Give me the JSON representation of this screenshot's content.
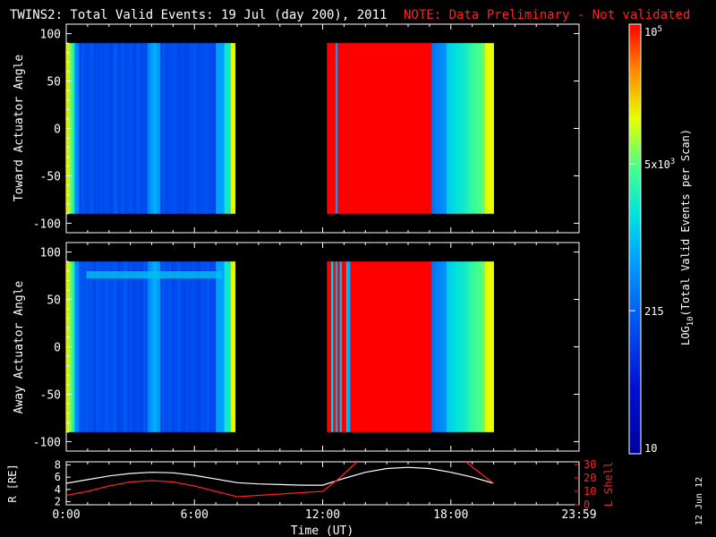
{
  "header": {
    "title": "TWINS2: Total Valid Events: 19 Jul (day 200), 2011",
    "note": "NOTE: Data Preliminary - Not validated",
    "note_color": "#ff2020",
    "date_stamp": "12 Jun 12"
  },
  "colorbar": {
    "label": "LOG10(Total Valid Events per Scan)",
    "label_prefix": "LOG",
    "label_sub": "10",
    "label_rest": "(Total Valid Events per Scan)",
    "ticks": [
      {
        "value": 10,
        "text": "10"
      },
      {
        "value": 215,
        "text": "215"
      },
      {
        "value": 5000,
        "text": "5x10^3"
      },
      {
        "value": 100000,
        "text": "10^5"
      }
    ],
    "range": [
      10,
      100000
    ],
    "scale": "log"
  },
  "chart_data": [
    {
      "type": "heatmap",
      "title": "",
      "ylabel": "Toward Actuator Angle",
      "xlabel": "",
      "ylim": [
        -110,
        110
      ],
      "xlim": [
        0,
        24
      ],
      "yticks": [
        100,
        50,
        0,
        -50,
        -100
      ],
      "data_x_ranges": [
        [
          0.0,
          7.9
        ],
        [
          12.2,
          20.0
        ]
      ],
      "data_y_range": [
        -90,
        90
      ]
    },
    {
      "type": "heatmap",
      "title": "",
      "ylabel": "Away Actuator Angle",
      "xlabel": "",
      "ylim": [
        -110,
        110
      ],
      "xlim": [
        0,
        24
      ],
      "yticks": [
        100,
        50,
        0,
        -50,
        -100
      ],
      "data_x_ranges": [
        [
          0.0,
          7.9
        ],
        [
          12.2,
          20.0
        ]
      ],
      "data_y_range": [
        -90,
        90
      ]
    },
    {
      "type": "line",
      "xlabel": "Time (UT)",
      "ylabel_left": "R [RE]",
      "ylabel_right": "L Shell",
      "ylim_left": [
        1.5,
        8.5
      ],
      "ylim_right": [
        0,
        32
      ],
      "yticks_left": [
        2,
        4,
        6,
        8
      ],
      "yticks_right": [
        0,
        10,
        20,
        30
      ],
      "xlim": [
        0,
        24
      ],
      "xticks": [
        {
          "value": 0,
          "text": "0:00"
        },
        {
          "value": 6,
          "text": "6:00"
        },
        {
          "value": 12,
          "text": "12:00"
        },
        {
          "value": 18,
          "text": "18:00"
        },
        {
          "value": 24,
          "text": "23:59"
        }
      ],
      "series": [
        {
          "name": "R",
          "color": "#ffffff",
          "axis": "left",
          "x": [
            0,
            1,
            2,
            3,
            4,
            5,
            6,
            7,
            8,
            9,
            10,
            11,
            12,
            13,
            14,
            15,
            16,
            17,
            18,
            19,
            20
          ],
          "y": [
            5.0,
            5.6,
            6.2,
            6.6,
            6.8,
            6.7,
            6.3,
            5.7,
            5.1,
            4.9,
            4.8,
            4.7,
            4.7,
            5.8,
            6.8,
            7.4,
            7.6,
            7.4,
            6.8,
            6.0,
            5.0
          ]
        },
        {
          "name": "L Shell",
          "color": "#ff2020",
          "axis": "right",
          "x": [
            0,
            1,
            2,
            3,
            4,
            5,
            6,
            7,
            8,
            9,
            10,
            11,
            12,
            12.8,
            13.6,
            18.7,
            19.5,
            20
          ],
          "y": [
            7,
            10,
            14,
            17,
            18,
            17,
            14,
            10,
            6,
            7,
            8,
            9,
            10,
            20,
            32,
            32,
            22,
            16
          ]
        }
      ]
    }
  ]
}
